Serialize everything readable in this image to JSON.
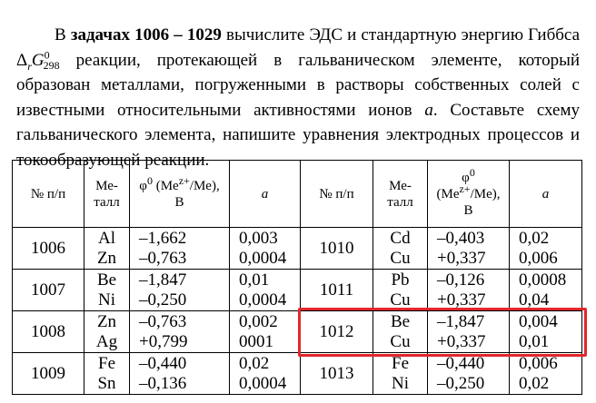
{
  "paragraph": {
    "parts": [
      "В",
      "задачах 1006 – 1029",
      "вычислите ЭДС и стандартную энергию Гиббса",
      "Δ",
      "r",
      "G",
      "0",
      "298",
      "реакции, протекающей в гальваническом элементе, который образован металлами, погруженными в растворы собственных солей с известными относительными активностями ионов",
      "a",
      ". Составьте схему гальванического элемента, напишите уравнения электродных процессов и токообразующей реакции."
    ]
  },
  "table": {
    "headers": {
      "number": "№ п/п",
      "metal": [
        "Ме-",
        "талл"
      ],
      "potential": {
        "symbol": "φ",
        "sup": "0",
        "open": "(Me",
        "charge": "z+",
        "close": "/Me),",
        "unit": "В"
      },
      "activity": "a"
    },
    "rows": [
      {
        "left": {
          "number": "1006",
          "metals": [
            "Al",
            "Zn"
          ],
          "potentials": [
            "–1,662",
            "–0,763"
          ],
          "activities": [
            "0,003",
            "0,0004"
          ]
        },
        "right": {
          "number": "1010",
          "metals": [
            "Cd",
            "Cu"
          ],
          "potentials": [
            "–0,403",
            "+0,337"
          ],
          "activities": [
            "0,02",
            "0,006"
          ]
        }
      },
      {
        "left": {
          "number": "1007",
          "metals": [
            "Be",
            "Ni"
          ],
          "potentials": [
            "–1,847",
            "–0,250"
          ],
          "activities": [
            "0,01",
            "0,0004"
          ]
        },
        "right": {
          "number": "1011",
          "metals": [
            "Pb",
            "Cu"
          ],
          "potentials": [
            "–0,126",
            "+0,337"
          ],
          "activities": [
            "0,0008",
            "0,04"
          ]
        }
      },
      {
        "left": {
          "number": "1008",
          "metals": [
            "Zn",
            "Ag"
          ],
          "potentials": [
            "–0,763",
            "+0,799"
          ],
          "activities": [
            "0,002",
            "0001"
          ]
        },
        "right": {
          "number": "1012",
          "metals": [
            "Be",
            "Cu"
          ],
          "potentials": [
            "–1,847",
            "+0,337"
          ],
          "activities": [
            "0,004",
            "0,01"
          ]
        }
      },
      {
        "left": {
          "number": "1009",
          "metals": [
            "Fe",
            "Sn"
          ],
          "potentials": [
            "–0,440",
            "–0,136"
          ],
          "activities": [
            "0,02",
            "0,0004"
          ]
        },
        "right": {
          "number": "1013",
          "metals": [
            "Fe",
            "Ni"
          ],
          "potentials": [
            "–0,440",
            "–0,250"
          ],
          "activities": [
            "0,006",
            "0,02"
          ]
        }
      }
    ]
  }
}
